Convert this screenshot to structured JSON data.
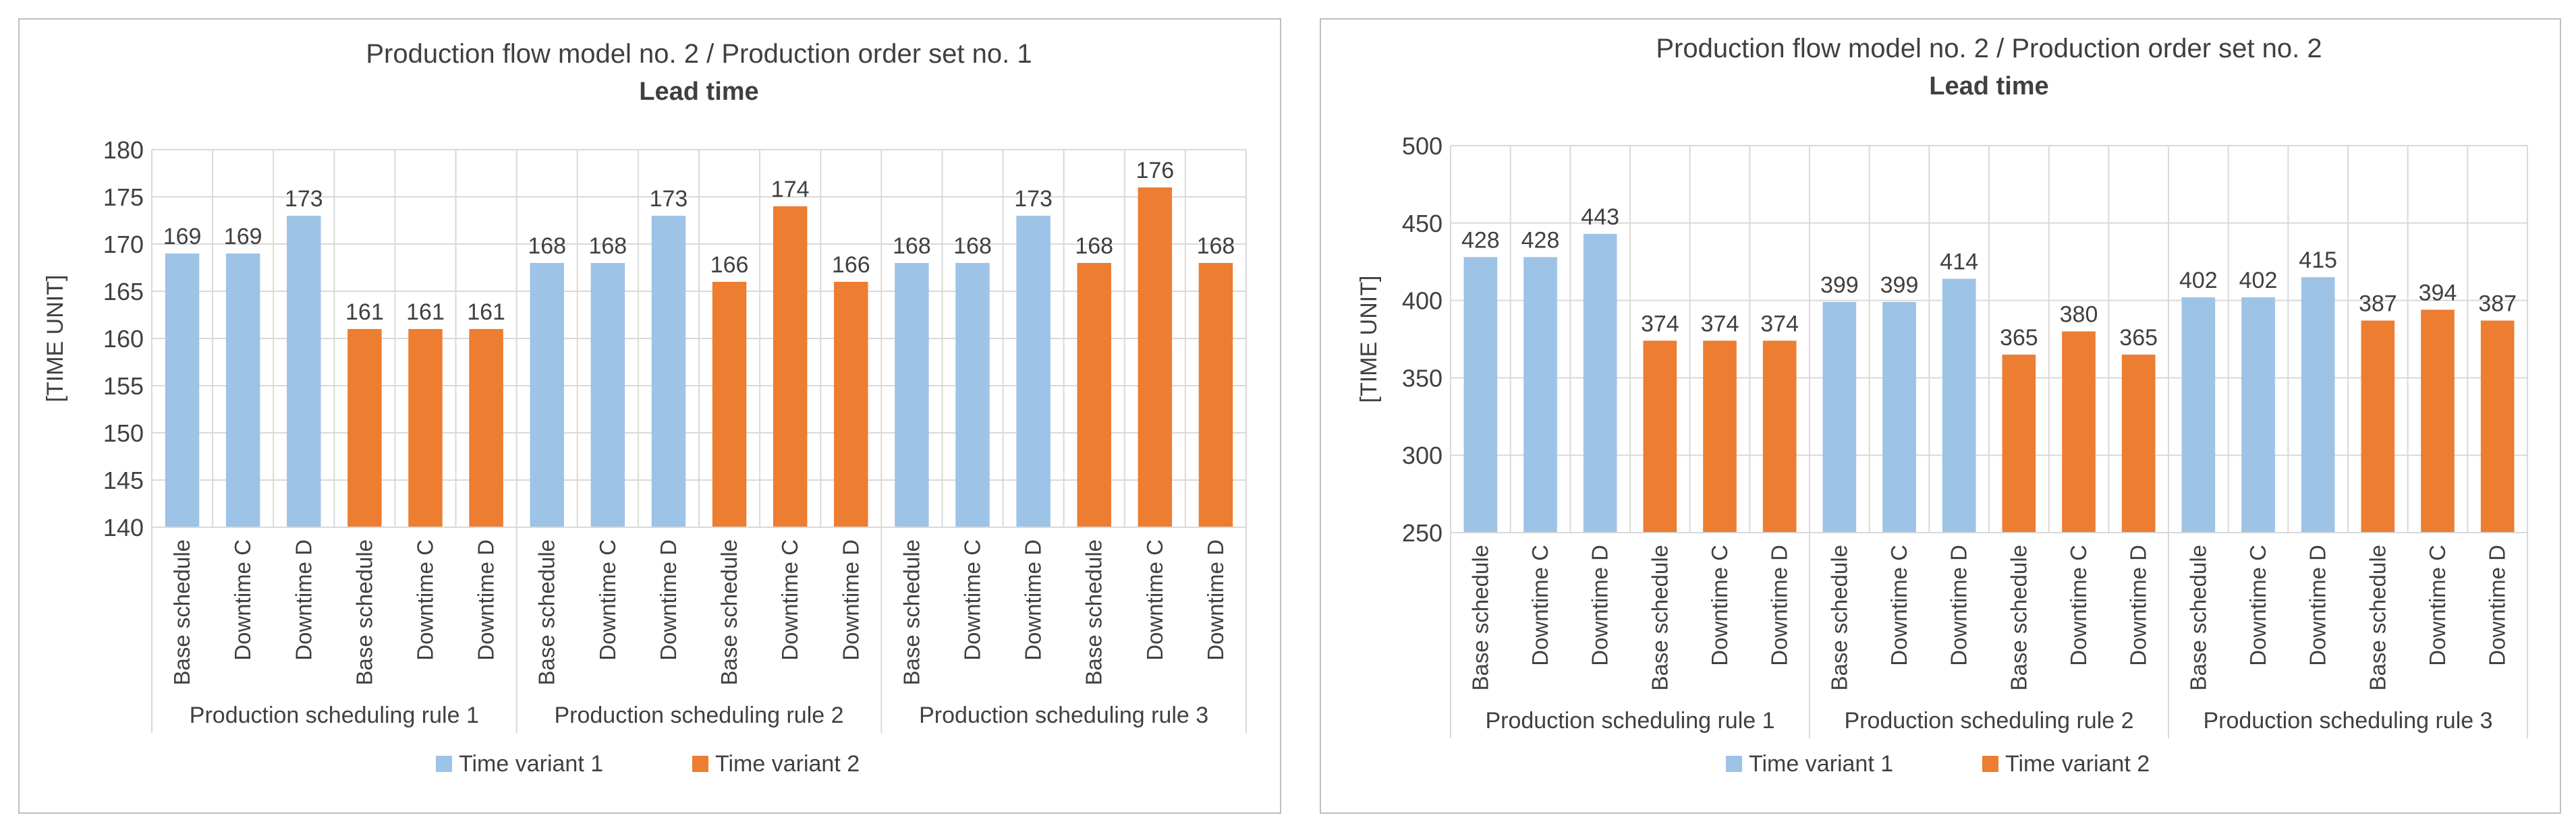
{
  "colors": {
    "variant1": "#9DC3E6",
    "variant2": "#ED7D31",
    "grid": "#D9D9D9",
    "text": "#404040",
    "frame": "#BFBFBF"
  },
  "chart_data": [
    {
      "type": "bar",
      "title": "Production flow model no. 2 / Production order set no. 1",
      "subtitle": "Lead time",
      "ylabel": "[TIME UNIT]",
      "xlabel": "",
      "ylim": [
        140,
        180
      ],
      "yticks": [
        140,
        145,
        150,
        155,
        160,
        165,
        170,
        175,
        180
      ],
      "grid": true,
      "legend_position": "bottom",
      "groups": [
        "Production scheduling rule 1",
        "Production scheduling rule 2",
        "Production scheduling rule 3"
      ],
      "categories": [
        "Base schedule",
        "Downtime C",
        "Downtime D",
        "Base schedule",
        "Downtime C",
        "Downtime D",
        "Base schedule",
        "Downtime C",
        "Downtime D",
        "Base schedule",
        "Downtime C",
        "Downtime D",
        "Base schedule",
        "Downtime C",
        "Downtime D",
        "Base schedule",
        "Downtime C",
        "Downtime D"
      ],
      "values": [
        169,
        169,
        173,
        161,
        161,
        161,
        168,
        168,
        173,
        166,
        174,
        166,
        168,
        168,
        173,
        168,
        176,
        168
      ],
      "value_labels": [
        "169",
        "169",
        "173",
        "161",
        "161",
        "161",
        "168",
        "168",
        "173",
        "166",
        "174",
        "166",
        "168",
        "168",
        "173",
        "168",
        "176",
        "168"
      ],
      "series_index": [
        0,
        0,
        0,
        1,
        1,
        1,
        0,
        0,
        0,
        1,
        1,
        1,
        0,
        0,
        0,
        1,
        1,
        1
      ],
      "legend": [
        "Time variant 1",
        "Time variant 2"
      ]
    },
    {
      "type": "bar",
      "title": "Production flow model no. 2 / Production order set no. 2",
      "subtitle": "Lead time",
      "ylabel": "[TIME UNIT]",
      "xlabel": "",
      "ylim": [
        250,
        500
      ],
      "yticks": [
        250,
        300,
        350,
        400,
        450,
        500
      ],
      "grid": true,
      "legend_position": "bottom",
      "groups": [
        "Production scheduling rule 1",
        "Production scheduling rule 2",
        "Production scheduling rule 3"
      ],
      "categories": [
        "Base schedule",
        "Downtime C",
        "Downtime D",
        "Base schedule",
        "Downtime C",
        "Downtime D",
        "Base schedule",
        "Downtime C",
        "Downtime D",
        "Base schedule",
        "Downtime C",
        "Downtime D",
        "Base schedule",
        "Downtime C",
        "Downtime D",
        "Base schedule",
        "Downtime C",
        "Downtime D"
      ],
      "values": [
        428,
        428,
        443,
        374,
        374,
        374,
        399,
        399,
        414,
        365,
        380,
        365,
        402,
        402,
        415,
        387,
        394,
        387
      ],
      "value_labels": [
        "428",
        "428",
        "443",
        "374",
        "374",
        "374",
        "399",
        "399",
        "414",
        "365",
        "380",
        "365",
        "402",
        "402",
        "415",
        "387",
        "394",
        "387"
      ],
      "series_index": [
        0,
        0,
        0,
        1,
        1,
        1,
        0,
        0,
        0,
        1,
        1,
        1,
        0,
        0,
        0,
        1,
        1,
        1
      ],
      "legend": [
        "Time variant 1",
        "Time variant 2"
      ]
    }
  ]
}
